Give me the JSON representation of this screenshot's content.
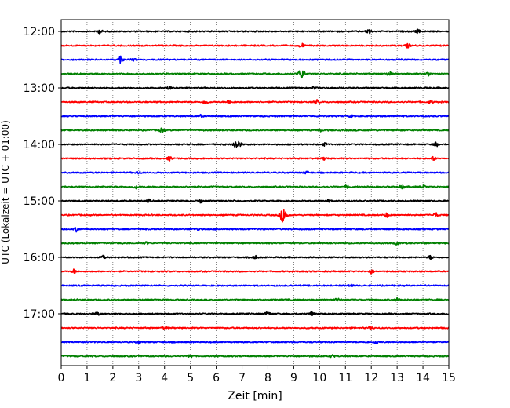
{
  "chart_data": {
    "type": "line",
    "subtype": "helicorder",
    "xlabel": "Zeit  [min]",
    "ylabel": "UTC (Lokalzeit = UTC + 01:00)",
    "xlim": [
      0,
      15
    ],
    "x_ticks": [
      "0",
      "1",
      "2",
      "3",
      "4",
      "5",
      "6",
      "7",
      "8",
      "9",
      "10",
      "11",
      "12",
      "13",
      "14",
      "15"
    ],
    "y_tick_labels": [
      "12:00",
      "13:00",
      "14:00",
      "15:00",
      "16:00",
      "17:00"
    ],
    "row_minutes_span": 15,
    "grid": "vertical-dotted",
    "trace_colors": [
      "#000000",
      "#ff0000",
      "#0000ff",
      "#008000"
    ],
    "traces": [
      {
        "start": "12:00",
        "events": [
          {
            "x": 1.5,
            "amp": 0.3
          },
          {
            "x": 11.9,
            "amp": 0.45
          },
          {
            "x": 13.8,
            "amp": 0.25
          }
        ]
      },
      {
        "start": "12:15",
        "events": [
          {
            "x": 9.3,
            "amp": 0.35
          },
          {
            "x": 13.4,
            "amp": 0.3
          }
        ]
      },
      {
        "start": "12:30",
        "events": [
          {
            "x": 2.3,
            "amp": 0.5
          },
          {
            "x": 2.8,
            "amp": 0.2
          }
        ]
      },
      {
        "start": "12:45",
        "events": [
          {
            "x": 9.3,
            "amp": 0.7
          },
          {
            "x": 12.7,
            "amp": 0.3
          },
          {
            "x": 14.2,
            "amp": 0.3
          }
        ]
      },
      {
        "start": "13:00",
        "events": [
          {
            "x": 4.2,
            "amp": 0.2
          },
          {
            "x": 9.8,
            "amp": 0.2
          }
        ]
      },
      {
        "start": "13:15",
        "events": [
          {
            "x": 5.6,
            "amp": 0.3
          },
          {
            "x": 6.5,
            "amp": 0.3
          },
          {
            "x": 9.9,
            "amp": 0.3
          },
          {
            "x": 14.3,
            "amp": 0.25
          }
        ]
      },
      {
        "start": "13:30",
        "events": [
          {
            "x": 5.4,
            "amp": 0.2
          },
          {
            "x": 11.2,
            "amp": 0.2
          }
        ]
      },
      {
        "start": "13:45",
        "events": [
          {
            "x": 3.9,
            "amp": 0.3
          },
          {
            "x": 10.0,
            "amp": 0.2
          }
        ]
      },
      {
        "start": "14:00",
        "events": [
          {
            "x": 6.8,
            "amp": 0.7
          },
          {
            "x": 14.5,
            "amp": 0.3
          },
          {
            "x": 10.2,
            "amp": 0.2
          }
        ]
      },
      {
        "start": "14:15",
        "events": [
          {
            "x": 4.2,
            "amp": 0.3
          },
          {
            "x": 10.2,
            "amp": 0.25
          },
          {
            "x": 14.4,
            "amp": 0.3
          }
        ]
      },
      {
        "start": "14:30",
        "events": [
          {
            "x": 3.0,
            "amp": 0.2
          },
          {
            "x": 9.5,
            "amp": 0.2
          }
        ]
      },
      {
        "start": "14:45",
        "events": [
          {
            "x": 2.9,
            "amp": 0.3
          },
          {
            "x": 11.1,
            "amp": 0.3
          },
          {
            "x": 13.2,
            "amp": 0.3
          },
          {
            "x": 14.0,
            "amp": 0.25
          }
        ]
      },
      {
        "start": "15:00",
        "events": [
          {
            "x": 3.4,
            "amp": 0.25
          },
          {
            "x": 5.4,
            "amp": 0.25
          },
          {
            "x": 10.3,
            "amp": 0.2
          }
        ]
      },
      {
        "start": "15:15",
        "events": [
          {
            "x": 8.6,
            "amp": 1.1
          },
          {
            "x": 12.6,
            "amp": 0.3
          },
          {
            "x": 14.5,
            "amp": 0.3
          }
        ]
      },
      {
        "start": "15:30",
        "events": [
          {
            "x": 0.6,
            "amp": 0.35
          },
          {
            "x": 5.3,
            "amp": 0.2
          }
        ]
      },
      {
        "start": "15:45",
        "events": [
          {
            "x": 3.3,
            "amp": 0.2
          },
          {
            "x": 13.0,
            "amp": 0.2
          }
        ]
      },
      {
        "start": "16:00",
        "events": [
          {
            "x": 1.6,
            "amp": 0.25
          },
          {
            "x": 7.5,
            "amp": 0.25
          },
          {
            "x": 14.3,
            "amp": 0.3
          }
        ]
      },
      {
        "start": "16:15",
        "events": [
          {
            "x": 0.5,
            "amp": 0.3
          },
          {
            "x": 12.0,
            "amp": 0.3
          }
        ]
      },
      {
        "start": "16:30",
        "events": [
          {
            "x": 11.2,
            "amp": 0.2
          }
        ]
      },
      {
        "start": "16:45",
        "events": [
          {
            "x": 10.7,
            "amp": 0.2
          },
          {
            "x": 13.0,
            "amp": 0.25
          }
        ]
      },
      {
        "start": "17:00",
        "events": [
          {
            "x": 1.4,
            "amp": 0.3
          },
          {
            "x": 8.0,
            "amp": 0.3
          },
          {
            "x": 9.7,
            "amp": 0.25
          }
        ]
      },
      {
        "start": "17:15",
        "events": [
          {
            "x": 4.0,
            "amp": 0.2
          },
          {
            "x": 12.0,
            "amp": 0.2
          }
        ]
      },
      {
        "start": "17:30",
        "events": [
          {
            "x": 3.0,
            "amp": 0.2
          },
          {
            "x": 12.2,
            "amp": 0.3
          }
        ]
      },
      {
        "start": "17:45",
        "events": [
          {
            "x": 5.0,
            "amp": 0.25
          },
          {
            "x": 10.5,
            "amp": 0.2
          }
        ]
      }
    ]
  }
}
